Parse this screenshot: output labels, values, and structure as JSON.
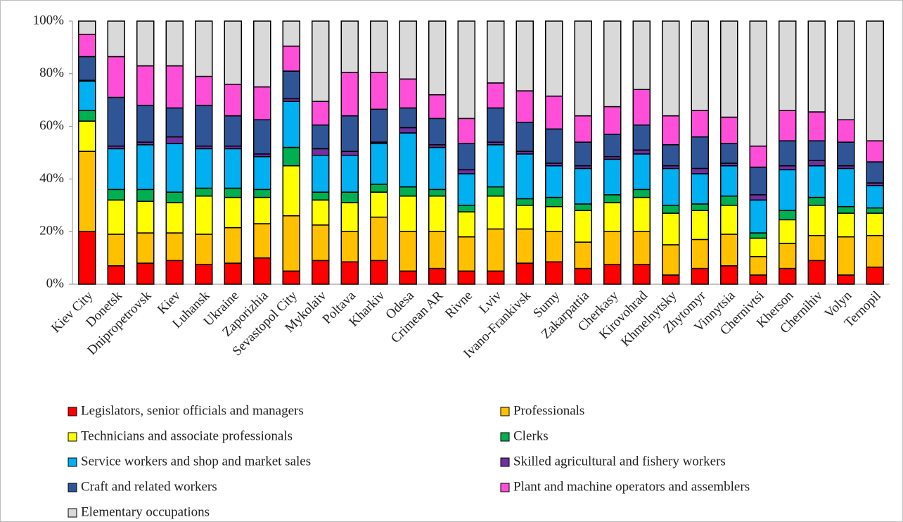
{
  "chart_data": {
    "type": "stacked_bar_100",
    "categories": [
      "Kiev City",
      "Donetsk",
      "Dnipropetrovsk",
      "Kiev",
      "Luhansk",
      "Ukraine",
      "Zaporizhia",
      "Sevastopol City",
      "Mykolaiv",
      "Poltava",
      "Kharkiv",
      "Odesa",
      "Crimean AR",
      "Rivne",
      "Lviv",
      "Ivano-Frankivsk",
      "Sumy",
      "Zakarpattia",
      "Cherkasy",
      "Kirovohrad",
      "Khmelnytsky",
      "Zhytomyr",
      "Vinnytsia",
      "Chernivtsi",
      "Kherson",
      "Chernihiv",
      "Volyn",
      "Ternopil"
    ],
    "series": [
      {
        "name": "Legislators, senior officials and managers",
        "color": "#ff0000",
        "values": [
          20,
          7,
          8,
          9,
          7.5,
          8,
          10,
          5,
          9,
          8.5,
          9,
          5,
          6,
          5,
          5,
          8,
          8.5,
          6,
          7.5,
          7.5,
          3.5,
          6,
          7,
          3.5,
          6,
          9,
          3.5,
          6.5
        ]
      },
      {
        "name": "Professionals",
        "color": "#ffc000",
        "values": [
          30.5,
          12,
          11.5,
          10.5,
          11.5,
          13.5,
          13,
          21,
          13.5,
          11.5,
          16.5,
          15,
          14,
          13,
          16,
          13,
          11.5,
          10,
          12.5,
          12.5,
          11.5,
          11,
          12,
          7,
          9.5,
          9.5,
          14.5,
          12
        ]
      },
      {
        "name": "Technicians and associate professionals",
        "color": "#ffff00",
        "values": [
          11.5,
          13,
          12,
          11.5,
          14.5,
          11.5,
          10,
          19,
          9.5,
          11,
          9.5,
          13.5,
          13.5,
          9.5,
          12.5,
          9,
          9.5,
          12,
          11,
          13,
          12,
          11,
          11,
          7,
          9,
          11.5,
          9,
          8.5
        ]
      },
      {
        "name": "Clerks",
        "color": "#00b050",
        "values": [
          4,
          4,
          4.5,
          4,
          3,
          3.5,
          3,
          7,
          3,
          4,
          3,
          3.5,
          2.5,
          2.5,
          3.5,
          2.5,
          3.5,
          2.5,
          3,
          3,
          3,
          2.5,
          3.5,
          2,
          3.5,
          3,
          2.5,
          2
        ]
      },
      {
        "name": "Service workers and shop and market sales",
        "color": "#00b0f0",
        "values": [
          11.2,
          15.5,
          17,
          18.5,
          15,
          15,
          12.5,
          17.5,
          14,
          14,
          15.5,
          20.5,
          16,
          12,
          16,
          17,
          12,
          13.5,
          13.5,
          13.5,
          14,
          11.5,
          11.5,
          12.5,
          15.5,
          12,
          14.5,
          8.5
        ]
      },
      {
        "name": "Skilled agricultural and fishery workers",
        "color": "#7030a0",
        "values": [
          0.3,
          1,
          1,
          2.5,
          1,
          1,
          1,
          1,
          2.5,
          1.5,
          0.5,
          2,
          1,
          1.5,
          1,
          1,
          1,
          1,
          1,
          1.5,
          1,
          2,
          1,
          2,
          1.5,
          2,
          1,
          1
        ]
      },
      {
        "name": "Craft and related workers",
        "color": "#2f5597",
        "values": [
          9,
          18.5,
          14,
          11,
          15.5,
          11.5,
          13,
          10.5,
          9,
          13.5,
          12.5,
          7.5,
          10,
          10,
          13,
          11,
          13,
          9,
          8.5,
          9.5,
          8,
          12,
          7.5,
          10.5,
          9.5,
          7.5,
          9,
          8
        ]
      },
      {
        "name": "Plant and machine operators and assemblers",
        "color": "#ff4fd8",
        "values": [
          8.5,
          15.5,
          15,
          16,
          11,
          12,
          12.5,
          9.5,
          9,
          16.5,
          14,
          11,
          9,
          9.5,
          9.5,
          12,
          12.5,
          10,
          10.5,
          13.5,
          11,
          10,
          10,
          8,
          11.5,
          11,
          8.5,
          8
        ]
      },
      {
        "name": "Elementary occupations",
        "color": "#d9d9d9",
        "values": [
          5,
          13.5,
          17,
          17,
          21,
          24,
          25,
          9.5,
          30.5,
          19.5,
          19.5,
          22,
          28,
          37,
          23.5,
          26.5,
          28.5,
          36,
          32.5,
          26,
          36,
          34,
          36.5,
          47.5,
          34,
          34.5,
          37.5,
          45.5
        ]
      }
    ],
    "ylim": [
      0,
      100
    ],
    "yticks": [
      {
        "value": 0,
        "label": "0%"
      },
      {
        "value": 20,
        "label": "20%"
      },
      {
        "value": 40,
        "label": "40%"
      },
      {
        "value": 60,
        "label": "60%"
      },
      {
        "value": 80,
        "label": "80%"
      },
      {
        "value": 100,
        "label": "100%"
      }
    ]
  }
}
